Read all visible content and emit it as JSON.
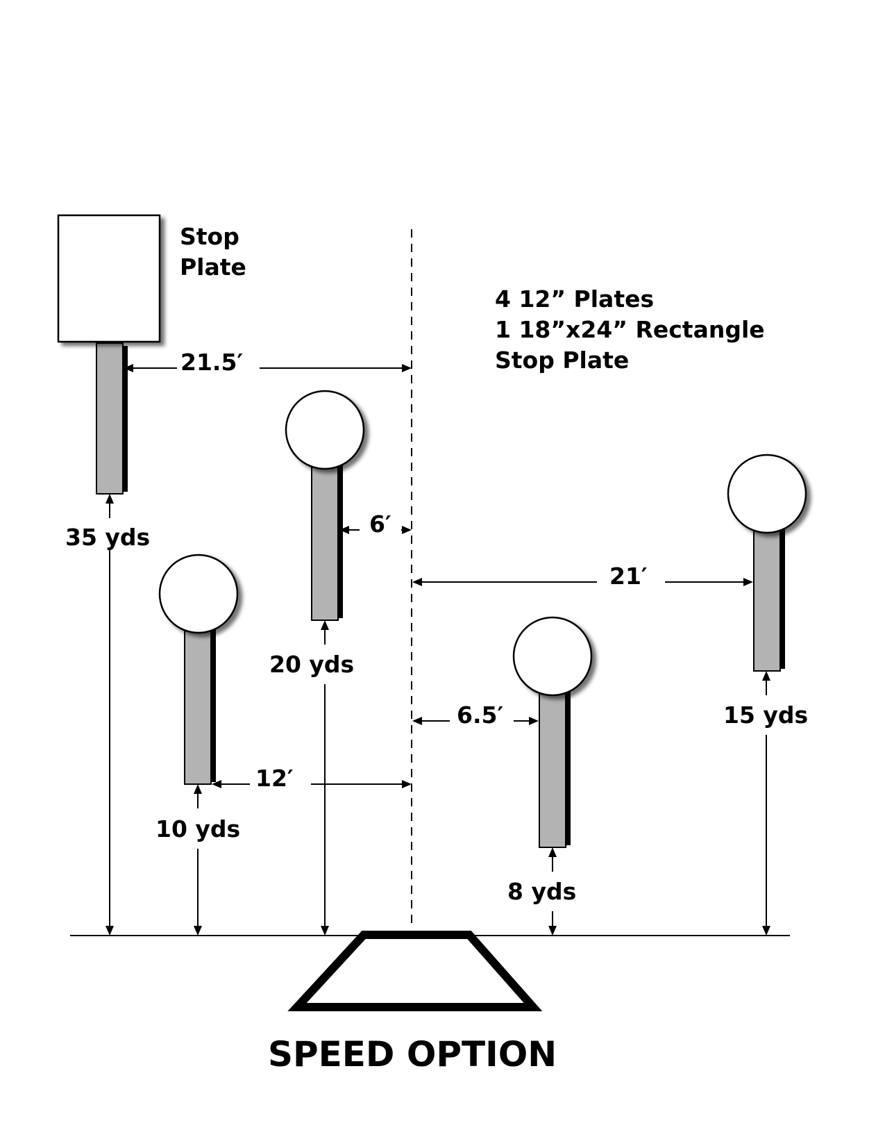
{
  "diagram": {
    "title": "SPEED OPTION",
    "stop_plate_label": [
      "Stop",
      "Plate"
    ],
    "notes": [
      "4 12” Plates",
      "1 18”x24” Rectangle",
      "Stop Plate"
    ],
    "target_distances": {
      "stop_plate": "35 yds",
      "plate_20": "20 yds",
      "plate_10": "10 yds",
      "plate_8": "8 yds",
      "plate_15": "15 yds"
    },
    "lateral_offsets": {
      "stop_plate": "21.5′",
      "plate_20": "6′",
      "plate_10": "12′",
      "plate_8": "6.5′",
      "plate_15": "21′"
    },
    "colors": {
      "post": "#b3b3b3",
      "plate": "#ffffff",
      "line": "#000000"
    }
  }
}
